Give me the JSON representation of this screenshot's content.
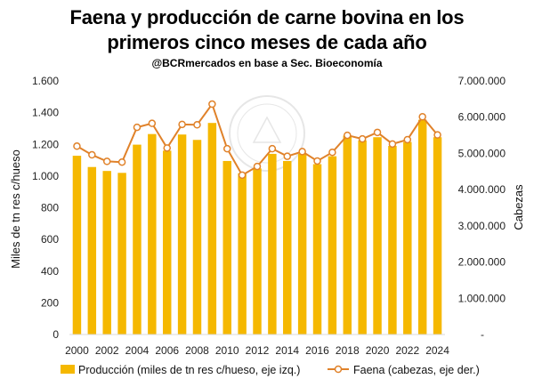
{
  "chart_data": {
    "type": "bar+line",
    "title_line1": "Faena y producción de carne bovina en los",
    "title_line2": "primeros cinco meses de cada año",
    "subtitle": "@BCRmercados en base a Sec. Bioeconomía",
    "ylabel_left": "Miles de tn res c/hueso",
    "ylabel_right": "Cabezas",
    "ylim_left": [
      0,
      1600
    ],
    "ylim_right": [
      0,
      7000000
    ],
    "left_ticks": [
      0,
      200,
      400,
      600,
      800,
      1000,
      1200,
      1400,
      1600
    ],
    "left_tick_labels": [
      "0",
      "200",
      "400",
      "600",
      "800",
      "1.000",
      "1.200",
      "1.400",
      "1.600"
    ],
    "right_ticks": [
      0,
      1000000,
      2000000,
      3000000,
      4000000,
      5000000,
      6000000,
      7000000
    ],
    "right_tick_labels": [
      "-",
      "1.000.000",
      "2.000.000",
      "3.000.000",
      "4.000.000",
      "5.000.000",
      "6.000.000",
      "7.000.000"
    ],
    "categories": [
      "2000",
      "2001",
      "2002",
      "2003",
      "2004",
      "2005",
      "2006",
      "2007",
      "2008",
      "2009",
      "2010",
      "2011",
      "2012",
      "2013",
      "2014",
      "2015",
      "2016",
      "2017",
      "2018",
      "2019",
      "2020",
      "2021",
      "2022",
      "2023",
      "2024"
    ],
    "x_tick_labels": [
      "2000",
      "2002",
      "2004",
      "2006",
      "2008",
      "2010",
      "2012",
      "2014",
      "2016",
      "2018",
      "2020",
      "2022",
      "2024"
    ],
    "series": [
      {
        "name": "Producción (miles de tn res c/hueso, eje izq.)",
        "axis": "left",
        "type": "bar",
        "color": "#f5b800",
        "values": [
          1128,
          1057,
          1032,
          1020,
          1198,
          1265,
          1160,
          1262,
          1228,
          1335,
          1095,
          1018,
          1048,
          1140,
          1095,
          1140,
          1075,
          1125,
          1255,
          1225,
          1245,
          1190,
          1215,
          1355,
          1245
        ]
      },
      {
        "name": "Faena (cabezas, eje der.)",
        "axis": "right",
        "type": "line",
        "color": "#e0822a",
        "values": [
          5200000,
          4960000,
          4780000,
          4760000,
          5720000,
          5830000,
          5150000,
          5800000,
          5790000,
          6360000,
          5130000,
          4400000,
          4640000,
          5130000,
          4920000,
          5050000,
          4790000,
          5030000,
          5500000,
          5400000,
          5580000,
          5260000,
          5380000,
          6010000,
          5510000
        ]
      }
    ],
    "legend_position": "bottom"
  }
}
